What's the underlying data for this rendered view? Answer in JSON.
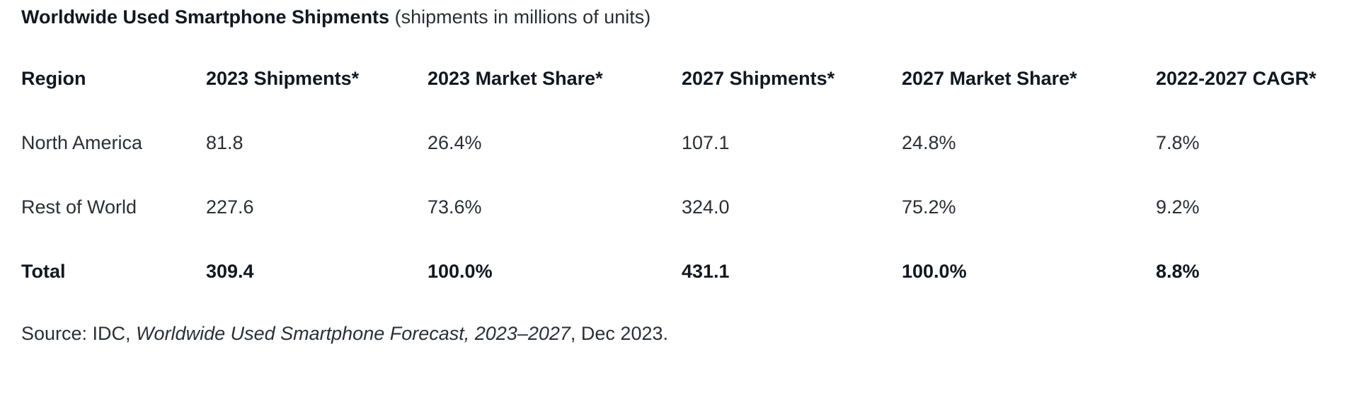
{
  "title": {
    "main": "Worldwide Used Smartphone Shipments",
    "subtitle": "(shipments in millions of units)"
  },
  "table": {
    "headers": [
      "Region",
      "2023 Shipments*",
      "2023 Market Share*",
      "2027 Shipments*",
      "2027 Market Share*",
      "2022-2027 CAGR*"
    ],
    "rows": [
      [
        "North America",
        "81.8",
        "26.4%",
        "107.1",
        "24.8%",
        "7.8%"
      ],
      [
        "Rest of World",
        "227.6",
        "73.6%",
        "324.0",
        "75.2%",
        "9.2%"
      ]
    ],
    "total": [
      "Total",
      "309.4",
      "100.0%",
      "431.1",
      "100.0%",
      "8.8%"
    ]
  },
  "source": {
    "prefix": "Source: IDC, ",
    "report": "Worldwide Used Smartphone Forecast, 2023–2027",
    "suffix": ", Dec 2023."
  }
}
